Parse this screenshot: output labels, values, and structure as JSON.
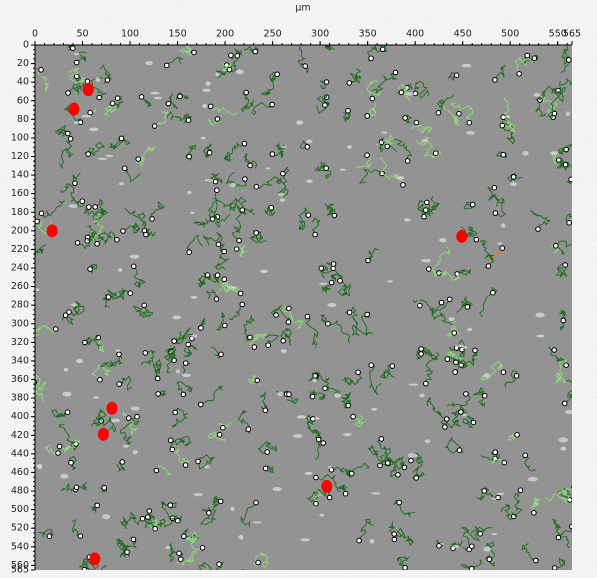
{
  "image": {
    "axis_label": "µm",
    "xlim": [
      0,
      565
    ],
    "ylim": [
      0,
      565
    ],
    "xticks": [
      0,
      50,
      100,
      150,
      200,
      250,
      300,
      350,
      400,
      450,
      500,
      550,
      565
    ],
    "yticks": [
      0,
      20,
      40,
      60,
      80,
      100,
      120,
      140,
      160,
      180,
      200,
      220,
      240,
      260,
      280,
      300,
      320,
      340,
      360,
      380,
      400,
      420,
      440,
      460,
      480,
      500,
      520,
      540,
      560,
      565
    ],
    "highlighted": {
      "color": "#ff0000",
      "x": [
        56,
        41,
        18,
        449,
        81,
        72,
        307,
        63
      ],
      "y": [
        48,
        69,
        200,
        206,
        391,
        419,
        475,
        553
      ]
    }
  }
}
